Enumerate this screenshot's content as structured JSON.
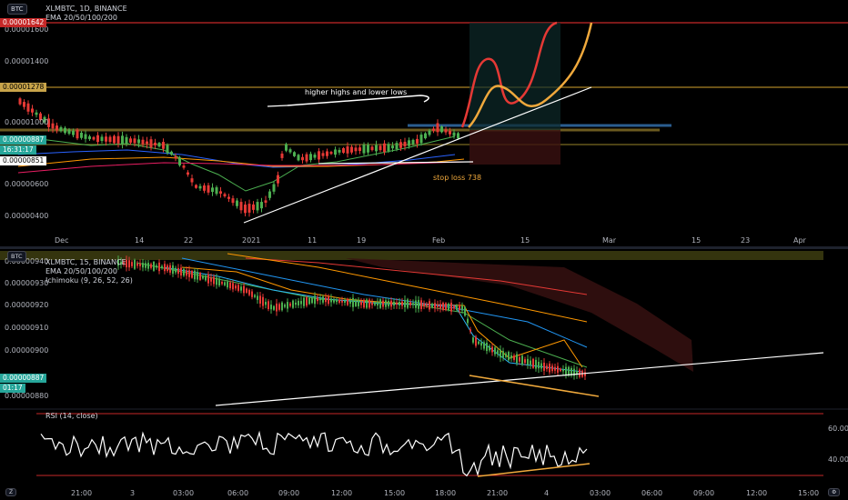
{
  "top_chart": {
    "symbol_button": "BTC",
    "legend_title": "XLMBTC, 1D, BINANCE",
    "legend_indicator": "EMA 20/50/100/200",
    "price_labels": [
      "0.00001600",
      "0.00001400",
      "0.00001000",
      "0.00000600",
      "0.00000400"
    ],
    "badges": {
      "red": "0.00001642",
      "orange": "0.00001278",
      "green_price": "0.00000887",
      "countdown": "16:31:17",
      "white": "0.00000851"
    },
    "time_labels": [
      "Dec",
      "14",
      "22",
      "2021",
      "11",
      "19",
      "Feb",
      "15",
      "Mar",
      "15",
      "23",
      "Apr"
    ],
    "annotation_hh": "higher highs and lower lows",
    "annotation_stop": "stop loss 738",
    "colors": {
      "stop": "#f0a93c",
      "red_line": "#e53935",
      "orange_line": "#b8860b"
    }
  },
  "bottom_chart": {
    "symbol_button": "BTC",
    "legend_title": "XLMBTC, 15, BINANCE",
    "legend_indicator": "EMA 20/50/100/200",
    "legend_ichimoku": "Ichimoku (9, 26, 52, 26)",
    "price_labels": [
      "0.00000940",
      "0.00000930",
      "0.00000920",
      "0.00000910",
      "0.00000900",
      "0.00000880"
    ],
    "badges": {
      "price": "0.00000887",
      "countdown": "01:17"
    },
    "rsi_label": "RSI (14, close)",
    "rsi_levels": [
      "60.00",
      "40.00"
    ],
    "time_labels": [
      "21:00",
      "3",
      "03:00",
      "06:00",
      "09:00",
      "12:00",
      "15:00",
      "18:00",
      "21:00",
      "4",
      "03:00",
      "06:00",
      "09:00",
      "12:00",
      "15:00"
    ]
  }
}
